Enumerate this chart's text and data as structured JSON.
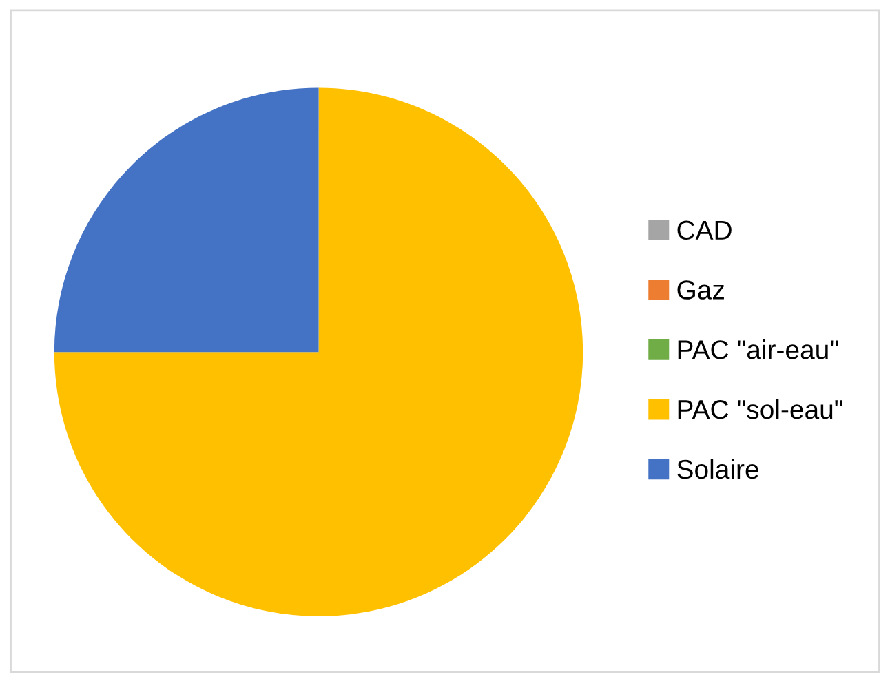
{
  "chart_data": {
    "type": "pie",
    "categories": [
      "CAD",
      "Gaz",
      "PAC \"air-eau\"",
      "PAC \"sol-eau\"",
      "Solaire"
    ],
    "values": [
      0,
      0,
      0,
      75,
      25
    ],
    "colors": [
      "#a5a5a5",
      "#ed7d31",
      "#70ad47",
      "#ffc000",
      "#4472c4"
    ],
    "legend": "right"
  }
}
